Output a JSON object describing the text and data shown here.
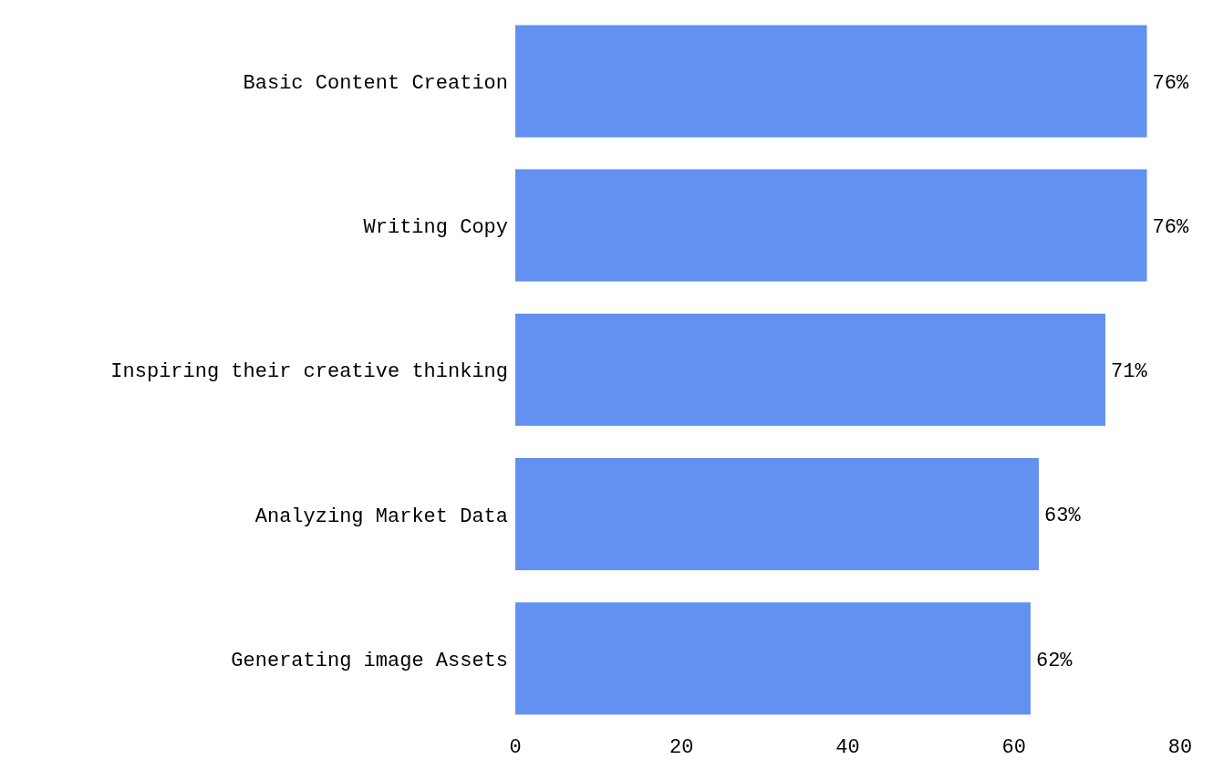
{
  "chart_data": {
    "type": "bar",
    "orientation": "horizontal",
    "categories": [
      "Basic Content Creation",
      "Writing Copy",
      "Inspiring their creative thinking",
      "Analyzing Market Data",
      "Generating image Assets"
    ],
    "values": [
      76,
      76,
      71,
      63,
      62
    ],
    "value_labels": [
      "76%",
      "76%",
      "71%",
      "63%",
      "62%"
    ],
    "color": "#6391f2",
    "xlim": [
      0,
      80
    ],
    "xticks": [
      0,
      20,
      40,
      60,
      80
    ],
    "grid": false
  }
}
